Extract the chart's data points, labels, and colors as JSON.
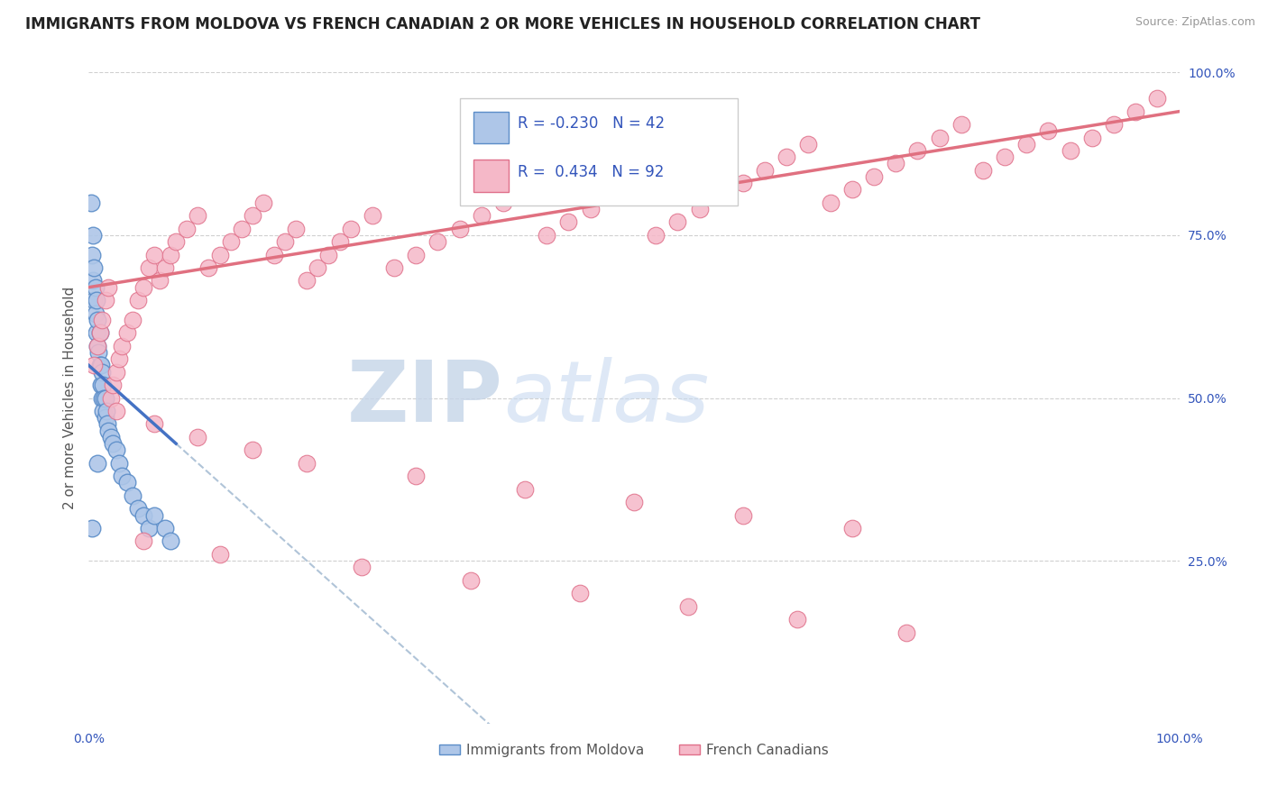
{
  "title": "IMMIGRANTS FROM MOLDOVA VS FRENCH CANADIAN 2 OR MORE VEHICLES IN HOUSEHOLD CORRELATION CHART",
  "source": "Source: ZipAtlas.com",
  "ylabel": "2 or more Vehicles in Household",
  "color_blue_fill": "#aec6e8",
  "color_blue_edge": "#5b8dc8",
  "color_pink_fill": "#f5b8c8",
  "color_pink_edge": "#e0708a",
  "color_blue_line": "#4472c4",
  "color_pink_line": "#e07080",
  "color_dashed": "#b0c4d8",
  "legend_label1": "Immigrants from Moldova",
  "legend_label2": "French Canadians",
  "blue_x": [
    0.002,
    0.003,
    0.004,
    0.004,
    0.005,
    0.005,
    0.006,
    0.006,
    0.007,
    0.007,
    0.008,
    0.008,
    0.009,
    0.01,
    0.01,
    0.011,
    0.011,
    0.012,
    0.012,
    0.013,
    0.013,
    0.014,
    0.015,
    0.015,
    0.016,
    0.017,
    0.018,
    0.02,
    0.022,
    0.025,
    0.028,
    0.03,
    0.035,
    0.04,
    0.045,
    0.05,
    0.055,
    0.06,
    0.07,
    0.075,
    0.003,
    0.008
  ],
  "blue_y": [
    0.8,
    0.72,
    0.68,
    0.75,
    0.65,
    0.7,
    0.67,
    0.63,
    0.6,
    0.65,
    0.58,
    0.62,
    0.57,
    0.55,
    0.6,
    0.55,
    0.52,
    0.54,
    0.5,
    0.52,
    0.48,
    0.5,
    0.5,
    0.47,
    0.48,
    0.46,
    0.45,
    0.44,
    0.43,
    0.42,
    0.4,
    0.38,
    0.37,
    0.35,
    0.33,
    0.32,
    0.3,
    0.32,
    0.3,
    0.28,
    0.3,
    0.4
  ],
  "pink_x": [
    0.005,
    0.008,
    0.01,
    0.012,
    0.015,
    0.018,
    0.02,
    0.022,
    0.025,
    0.028,
    0.03,
    0.035,
    0.04,
    0.045,
    0.05,
    0.055,
    0.06,
    0.065,
    0.07,
    0.075,
    0.08,
    0.09,
    0.1,
    0.11,
    0.12,
    0.13,
    0.14,
    0.15,
    0.16,
    0.17,
    0.18,
    0.19,
    0.2,
    0.21,
    0.22,
    0.23,
    0.24,
    0.26,
    0.28,
    0.3,
    0.32,
    0.34,
    0.36,
    0.38,
    0.4,
    0.42,
    0.44,
    0.46,
    0.48,
    0.5,
    0.52,
    0.54,
    0.56,
    0.58,
    0.6,
    0.62,
    0.64,
    0.66,
    0.68,
    0.7,
    0.72,
    0.74,
    0.76,
    0.78,
    0.8,
    0.82,
    0.84,
    0.86,
    0.88,
    0.9,
    0.92,
    0.94,
    0.96,
    0.98,
    0.025,
    0.06,
    0.1,
    0.15,
    0.2,
    0.3,
    0.4,
    0.5,
    0.6,
    0.7,
    0.05,
    0.12,
    0.25,
    0.35,
    0.45,
    0.55,
    0.65,
    0.75
  ],
  "pink_y": [
    0.55,
    0.58,
    0.6,
    0.62,
    0.65,
    0.67,
    0.5,
    0.52,
    0.54,
    0.56,
    0.58,
    0.6,
    0.62,
    0.65,
    0.67,
    0.7,
    0.72,
    0.68,
    0.7,
    0.72,
    0.74,
    0.76,
    0.78,
    0.7,
    0.72,
    0.74,
    0.76,
    0.78,
    0.8,
    0.72,
    0.74,
    0.76,
    0.68,
    0.7,
    0.72,
    0.74,
    0.76,
    0.78,
    0.7,
    0.72,
    0.74,
    0.76,
    0.78,
    0.8,
    0.82,
    0.75,
    0.77,
    0.79,
    0.81,
    0.83,
    0.75,
    0.77,
    0.79,
    0.81,
    0.83,
    0.85,
    0.87,
    0.89,
    0.8,
    0.82,
    0.84,
    0.86,
    0.88,
    0.9,
    0.92,
    0.85,
    0.87,
    0.89,
    0.91,
    0.88,
    0.9,
    0.92,
    0.94,
    0.96,
    0.48,
    0.46,
    0.44,
    0.42,
    0.4,
    0.38,
    0.36,
    0.34,
    0.32,
    0.3,
    0.28,
    0.26,
    0.24,
    0.22,
    0.2,
    0.18,
    0.16,
    0.14
  ]
}
